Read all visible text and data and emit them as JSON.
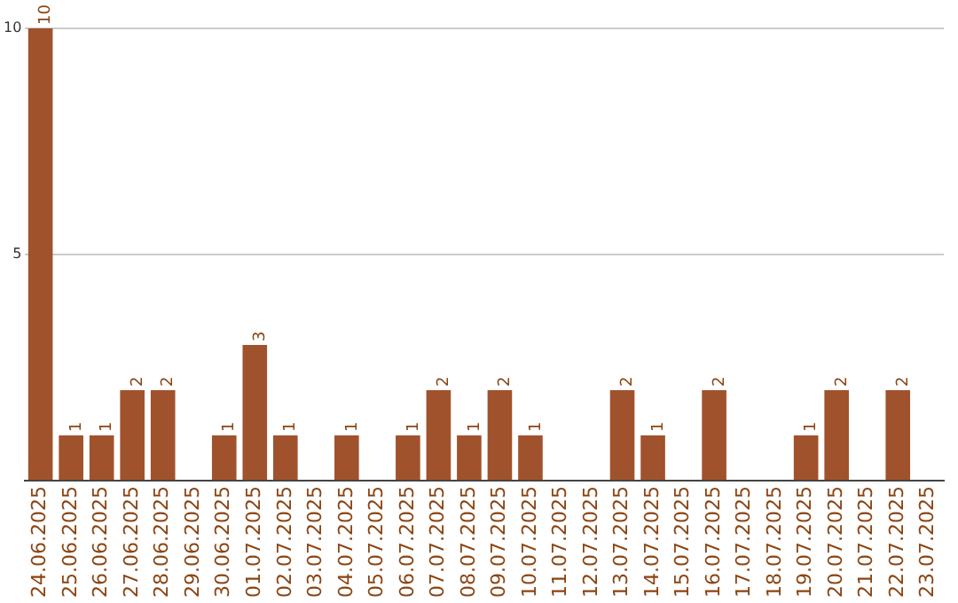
{
  "chart_data": {
    "type": "bar",
    "categories": [
      "24.06.2025",
      "25.06.2025",
      "26.06.2025",
      "27.06.2025",
      "28.06.2025",
      "29.06.2025",
      "30.06.2025",
      "01.07.2025",
      "02.07.2025",
      "03.07.2025",
      "04.07.2025",
      "05.07.2025",
      "06.07.2025",
      "07.07.2025",
      "08.07.2025",
      "09.07.2025",
      "10.07.2025",
      "11.07.2025",
      "12.07.2025",
      "13.07.2025",
      "14.07.2025",
      "15.07.2025",
      "16.07.2025",
      "17.07.2025",
      "18.07.2025",
      "19.07.2025",
      "20.07.2025",
      "21.07.2025",
      "22.07.2025",
      "23.07.2025"
    ],
    "values": [
      10,
      1,
      1,
      2,
      2,
      0,
      1,
      3,
      1,
      0,
      1,
      0,
      1,
      2,
      1,
      2,
      1,
      0,
      0,
      2,
      1,
      0,
      2,
      0,
      0,
      1,
      2,
      0,
      2,
      0
    ],
    "value_labels": [
      "10",
      "1",
      "1",
      "2",
      "2",
      null,
      "1",
      "3",
      "1",
      null,
      "1",
      null,
      "1",
      "2",
      "1",
      "2",
      "1",
      null,
      null,
      "2",
      "1",
      null,
      "2",
      null,
      null,
      "1",
      "2",
      null,
      "2",
      null
    ],
    "color": "#a0522d",
    "ylim": [
      0,
      10
    ],
    "yticks": [
      {
        "value": 0,
        "label": null
      },
      5,
      10
    ],
    "grid": "y",
    "legend": false
  }
}
